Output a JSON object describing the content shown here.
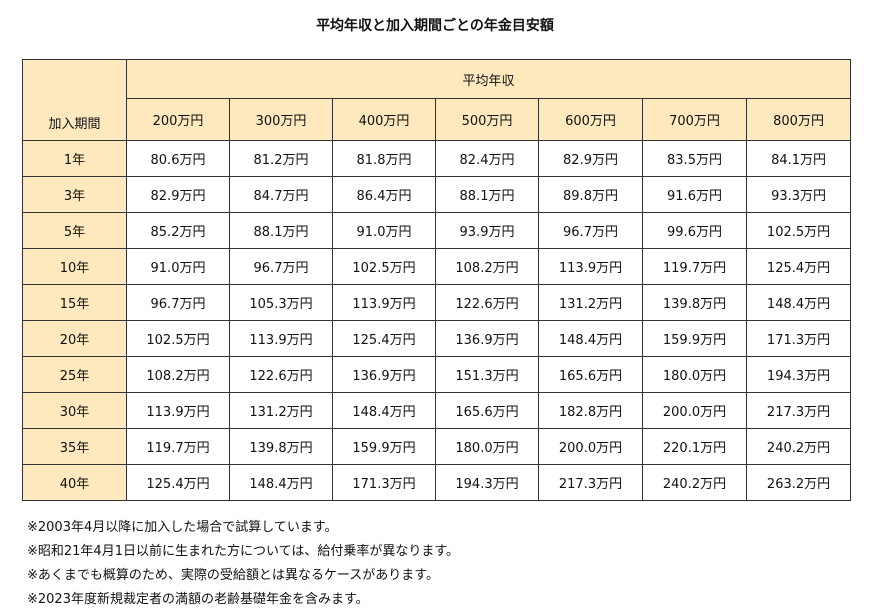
{
  "title": "平均年収と加入期間ごとの年金目安額",
  "table": {
    "corner_label": "加入期間",
    "group_label": "平均年収",
    "income_headers": [
      "200万円",
      "300万円",
      "400万円",
      "500万円",
      "600万円",
      "700万円",
      "800万円"
    ],
    "rows": [
      {
        "period": "1年",
        "values": [
          "80.6万円",
          "81.2万円",
          "81.8万円",
          "82.4万円",
          "82.9万円",
          "83.5万円",
          "84.1万円"
        ]
      },
      {
        "period": "3年",
        "values": [
          "82.9万円",
          "84.7万円",
          "86.4万円",
          "88.1万円",
          "89.8万円",
          "91.6万円",
          "93.3万円"
        ]
      },
      {
        "period": "5年",
        "values": [
          "85.2万円",
          "88.1万円",
          "91.0万円",
          "93.9万円",
          "96.7万円",
          "99.6万円",
          "102.5万円"
        ]
      },
      {
        "period": "10年",
        "values": [
          "91.0万円",
          "96.7万円",
          "102.5万円",
          "108.2万円",
          "113.9万円",
          "119.7万円",
          "125.4万円"
        ]
      },
      {
        "period": "15年",
        "values": [
          "96.7万円",
          "105.3万円",
          "113.9万円",
          "122.6万円",
          "131.2万円",
          "139.8万円",
          "148.4万円"
        ]
      },
      {
        "period": "20年",
        "values": [
          "102.5万円",
          "113.9万円",
          "125.4万円",
          "136.9万円",
          "148.4万円",
          "159.9万円",
          "171.3万円"
        ]
      },
      {
        "period": "25年",
        "values": [
          "108.2万円",
          "122.6万円",
          "136.9万円",
          "151.3万円",
          "165.6万円",
          "180.0万円",
          "194.3万円"
        ]
      },
      {
        "period": "30年",
        "values": [
          "113.9万円",
          "131.2万円",
          "148.4万円",
          "165.6万円",
          "182.8万円",
          "200.0万円",
          "217.3万円"
        ]
      },
      {
        "period": "35年",
        "values": [
          "119.7万円",
          "139.8万円",
          "159.9万円",
          "180.0万円",
          "200.0万円",
          "220.1万円",
          "240.2万円"
        ]
      },
      {
        "period": "40年",
        "values": [
          "125.4万円",
          "148.4万円",
          "171.3万円",
          "194.3万円",
          "217.3万円",
          "240.2万円",
          "263.2万円"
        ]
      }
    ]
  },
  "notes": [
    "※2003年4月以降に加入した場合で試算しています。",
    "※昭和21年4月1日以前に生まれた方については、給付乗率が異なります。",
    "※あくまでも概算のため、実際の受給額とは異なるケースがあります。",
    "※2023年度新規裁定者の満額の老齢基礎年金を含みます。"
  ],
  "colors": {
    "header_background": "#fde9bd",
    "border": "#333333"
  }
}
